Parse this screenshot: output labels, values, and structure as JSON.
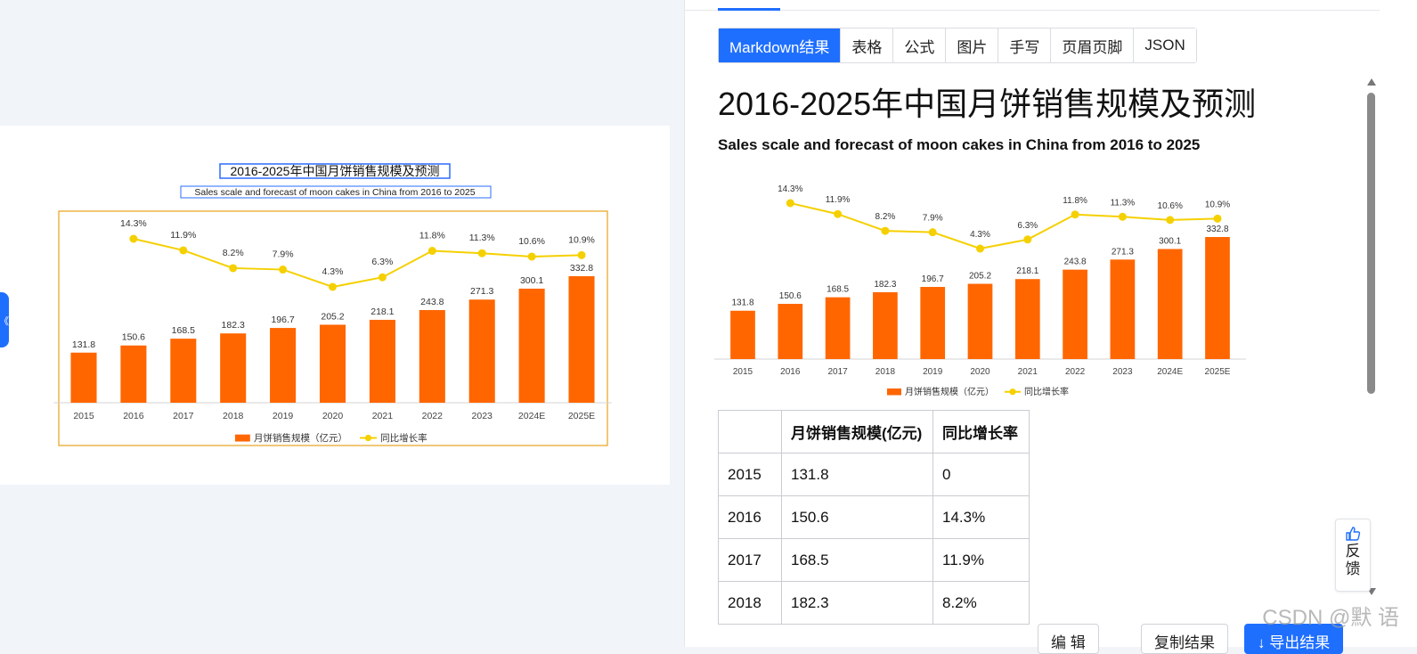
{
  "right": {
    "tabs": [
      "Markdown结果",
      "表格",
      "公式",
      "图片",
      "手写",
      "页眉页脚",
      "JSON"
    ],
    "title": "2016-2025年中国月饼销售规模及预测",
    "subtitle": "Sales scale and forecast of moon cakes in China from 2016 to 2025",
    "table": {
      "headers": [
        "",
        "月饼销售规模(亿元)",
        "同比增长率"
      ],
      "rows": [
        [
          "2015",
          "131.8",
          "0"
        ],
        [
          "2016",
          "150.6",
          "14.3%"
        ],
        [
          "2017",
          "168.5",
          "11.9%"
        ],
        [
          "2018",
          "182.3",
          "8.2%"
        ]
      ]
    },
    "feedback": [
      "反",
      "馈"
    ],
    "buttons": [
      "编 辑",
      "复制结果",
      "↓ 导出结果"
    ]
  },
  "watermark": "CSDN @默    语",
  "side_tab_glyph": "《",
  "chart_data": {
    "type": "bar",
    "title": "2016-2025年中国月饼销售规模及预测",
    "subtitle": "Sales scale and forecast of moon cakes in China from 2016 to 2025",
    "categories": [
      "2015",
      "2016",
      "2017",
      "2018",
      "2019",
      "2020",
      "2021",
      "2022",
      "2023",
      "2024E",
      "2025E"
    ],
    "series": [
      {
        "name": "月饼销售规模（亿元）",
        "type": "bar",
        "color": "#ff6600",
        "values": [
          131.8,
          150.6,
          168.5,
          182.3,
          196.7,
          205.2,
          218.1,
          243.8,
          271.3,
          300.1,
          332.8
        ],
        "labels": [
          "131.8",
          "150.6",
          "168.5",
          "182.3",
          "196.7",
          "205.2",
          "218.1",
          "243.8",
          "271.3",
          "300.1",
          "332.8"
        ]
      },
      {
        "name": "同比增长率",
        "type": "line",
        "color": "#f5d000",
        "values": [
          null,
          14.3,
          11.9,
          8.2,
          7.9,
          4.3,
          6.3,
          11.8,
          11.3,
          10.6,
          10.9
        ],
        "labels": [
          "",
          "14.3%",
          "11.9%",
          "8.2%",
          "7.9%",
          "4.3%",
          "6.3%",
          "11.8%",
          "11.3%",
          "10.6%",
          "10.9%"
        ]
      }
    ],
    "legend": "bottom"
  }
}
